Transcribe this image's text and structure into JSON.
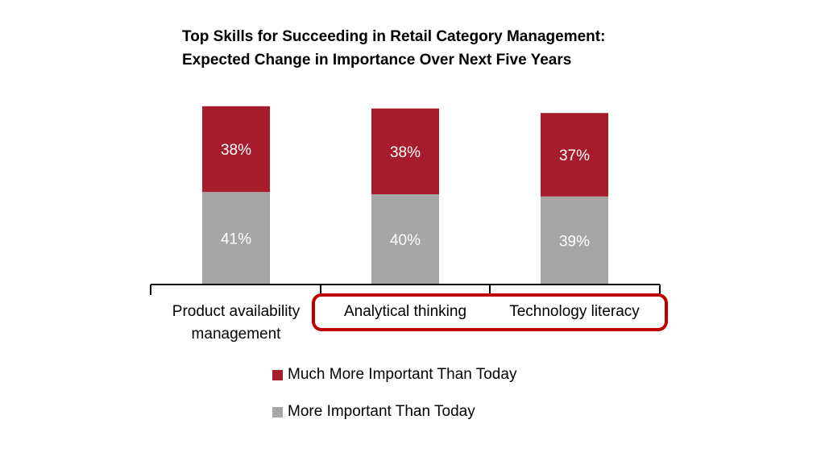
{
  "chart_data": {
    "type": "bar",
    "stacked": true,
    "title_lines": [
      "Top Skills for Succeeding in Retail Category Management:",
      "Expected Change in Importance Over Next Five Years"
    ],
    "categories": [
      [
        "Product availability",
        "management"
      ],
      [
        "Analytical thinking"
      ],
      [
        "Technology literacy"
      ]
    ],
    "series": [
      {
        "name": "More Important Than Today",
        "color": "#a6a6a6",
        "values": [
          41,
          40,
          39
        ],
        "labels": [
          "41%",
          "40%",
          "39%"
        ]
      },
      {
        "name": "Much More Important Than Today",
        "color": "#a71c2b",
        "values": [
          38,
          38,
          37
        ],
        "labels": [
          "38%",
          "38%",
          "37%"
        ]
      }
    ],
    "legend_order": [
      1,
      0
    ],
    "highlight": {
      "categories": [
        1,
        2
      ],
      "color": "#c00000"
    },
    "ylim": [
      0,
      100
    ],
    "xlabel": "",
    "ylabel": ""
  }
}
